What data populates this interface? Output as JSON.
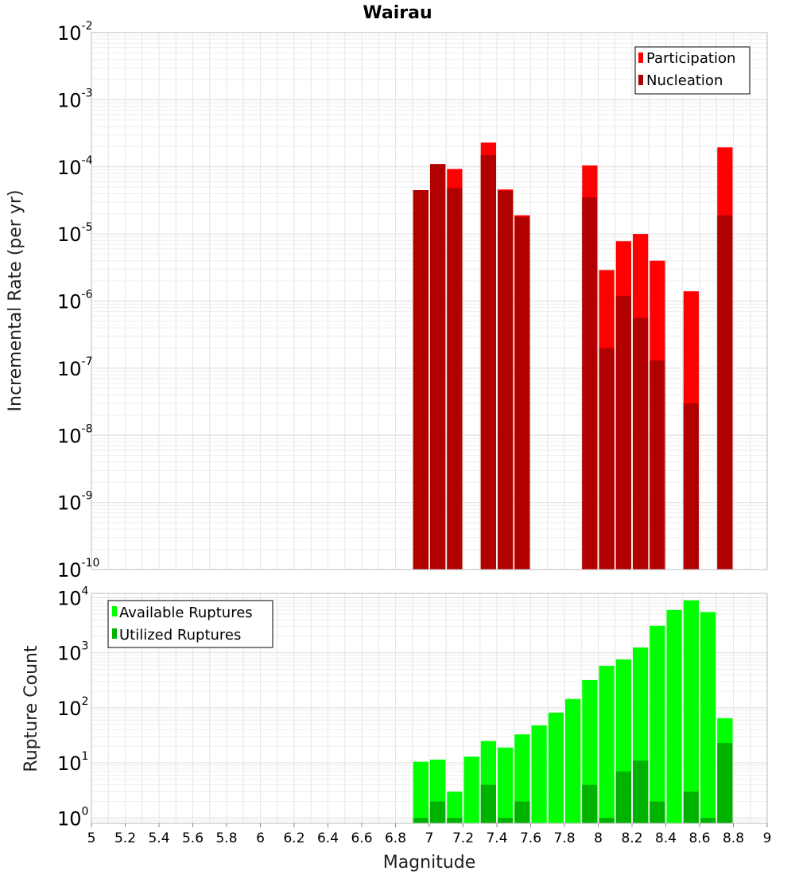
{
  "chart_data": [
    {
      "type": "bar",
      "title": "Wairau",
      "ylabel": "Incremental Rate (per yr)",
      "xlabel": "",
      "xlim": [
        5,
        9
      ],
      "ylim": [
        1e-10,
        0.01
      ],
      "yscale": "log",
      "grid": true,
      "legend_position": "top-right",
      "x": [
        6.95,
        7.05,
        7.15,
        7.35,
        7.45,
        7.55,
        7.95,
        8.05,
        8.15,
        8.25,
        8.35,
        8.55,
        8.75
      ],
      "series": [
        {
          "name": "Participation",
          "color": "#ff0000",
          "values": [
            4.5e-05,
            0.00011,
            9.3e-05,
            0.00023,
            4.6e-05,
            1.9e-05,
            0.000105,
            2.9e-06,
            7.8e-06,
            1e-05,
            4e-06,
            1.4e-06,
            0.000195
          ]
        },
        {
          "name": "Nucleation",
          "color": "#b00000",
          "values": [
            4.5e-05,
            0.00011,
            4.8e-05,
            0.00015,
            4.4e-05,
            1.8e-05,
            3.5e-05,
            2e-07,
            1.2e-06,
            5.6e-07,
            1.3e-07,
            3e-08,
            1.9e-05
          ]
        }
      ]
    },
    {
      "type": "bar",
      "title": "",
      "ylabel": "Rupture Count",
      "xlabel": "Magnitude",
      "xlim": [
        5,
        9
      ],
      "ylim": [
        0.8,
        12000
      ],
      "yscale": "log",
      "grid": true,
      "legend_position": "top-left",
      "x": [
        6.95,
        7.05,
        7.15,
        7.25,
        7.35,
        7.45,
        7.55,
        7.65,
        7.75,
        7.85,
        7.95,
        8.05,
        8.15,
        8.25,
        8.35,
        8.45,
        8.55,
        8.65,
        8.75
      ],
      "series": [
        {
          "name": "Available Ruptures",
          "color": "#00ff00",
          "values": [
            10.5,
            11.5,
            3,
            13,
            25,
            19,
            33,
            48,
            82,
            145,
            320,
            580,
            760,
            1250,
            3100,
            6000,
            9000,
            5500,
            65
          ]
        },
        {
          "name": "Utilized Ruptures",
          "color": "#00b200",
          "values": [
            1,
            2,
            1,
            0,
            4,
            1,
            2,
            0,
            0,
            0,
            4,
            1,
            7,
            11,
            2,
            0,
            3,
            1,
            23
          ]
        }
      ]
    }
  ],
  "x_ticks": [
    "5",
    "5.2",
    "5.4",
    "5.6",
    "5.8",
    "6",
    "6.2",
    "6.4",
    "6.6",
    "6.8",
    "7",
    "7.2",
    "7.4",
    "7.6",
    "7.8",
    "8",
    "8.2",
    "8.4",
    "8.6",
    "8.8",
    "9"
  ],
  "top_y_ticks": [
    {
      "base": "10",
      "exp": "-2"
    },
    {
      "base": "10",
      "exp": "-3"
    },
    {
      "base": "10",
      "exp": "-4"
    },
    {
      "base": "10",
      "exp": "-5"
    },
    {
      "base": "10",
      "exp": "-6"
    },
    {
      "base": "10",
      "exp": "-7"
    },
    {
      "base": "10",
      "exp": "-8"
    },
    {
      "base": "10",
      "exp": "-9"
    },
    {
      "base": "10",
      "exp": "-10"
    }
  ],
  "bottom_y_ticks": [
    {
      "base": "10",
      "exp": "4"
    },
    {
      "base": "10",
      "exp": "3"
    },
    {
      "base": "10",
      "exp": "2"
    },
    {
      "base": "10",
      "exp": "1"
    },
    {
      "base": "10",
      "exp": "0"
    }
  ]
}
